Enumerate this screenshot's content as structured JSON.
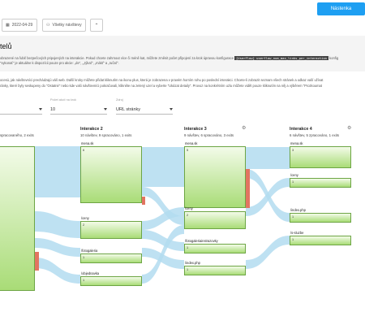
{
  "toolbar": {
    "date": "2022-04-29",
    "visits_label": "Všetky návštevy",
    "up_label": "⌃",
    "notifications_label": "Nástenka"
  },
  "page": {
    "title": "telů",
    "desc1_pre": "obrazené na ľubiť bezpečových pripojených na interakcie. Pokud chcete zahrnout více či méně kat, můžete změnit počet připojení za krok úpravou konfigurace",
    "desc1_code": "[UserFlow] userflow_num_max_links_per_interaction",
    "desc1_post": "konfig",
    "desc1_line2": "\"vykonať\" je aktuálne k dispozícii pouze pro akcie: „de“, „„týkať“, „mákť“ a „ručať“.",
    "desc2_line1": "ocesú, jak návštevníci prechádzajú váš web. Další kroky můžete přidat kliknutím na ikonu plus, která je zobrazena v pravém horním rohu po poslední interakci. Chcete-li zobrazit seznam všech stránek a odkaz vaší užívat",
    "desc2_line2": "ránky, které byly seskupeny do \"Ostatné\" nebo kde vaši návštevníci pokračovali, klikněte na zelený uzel a vyberte \"Ukázat detaily\". Provoz na konkrétním uzlu můžete vidět pouze kliknutím na něj a výběrem \"Prozkoumat"
  },
  "selectors": [
    {
      "label": "",
      "value": ""
    },
    {
      "label": "Počet akcií na krok",
      "value": "10"
    },
    {
      "label": "Zdroj",
      "value": "URL stránky"
    }
  ],
  "columns": [
    {
      "title": "",
      "subtitle": "spracovaného, 2 exits"
    },
    {
      "title": "Interakce 2",
      "subtitle": "10 návštev, 9 spracováno, 1 exits"
    },
    {
      "title": "Interakce 3",
      "subtitle": "9 návštev, 6 spracováno, 3 exits"
    },
    {
      "title": "Interakce 4",
      "subtitle": "6 návštev, 5 zpracováno, 1 exits"
    }
  ],
  "nodes": {
    "c2": [
      {
        "label": "mena.sk",
        "num": "6"
      },
      {
        "label": "/ceny",
        "num": "2"
      },
      {
        "label": "/fotogaleria",
        "num": "1"
      },
      {
        "label": "/objednavka",
        "num": "1"
      }
    ],
    "c3": [
      {
        "label": "mena.sk",
        "num": "5"
      },
      {
        "label": "/ceny",
        "num": "2"
      },
      {
        "label": "/fotogaleriainstrazovky",
        "num": "1"
      },
      {
        "label": "/index.php",
        "num": "1"
      }
    ],
    "c4": [
      {
        "label": "mena.sk",
        "num": "3"
      },
      {
        "label": "/ceny",
        "num": "1"
      },
      {
        "label": "/index.php",
        "num": "1"
      },
      {
        "label": "/s-sluzbe",
        "num": "1"
      }
    ]
  },
  "colors": {
    "accent": "#1e9ff2",
    "node_border": "#6da544",
    "link": "#b3dcf0",
    "exit": "#e27461"
  }
}
